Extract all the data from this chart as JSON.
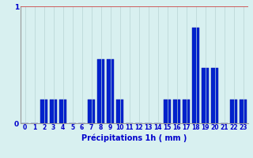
{
  "hours": [
    0,
    1,
    2,
    3,
    4,
    5,
    6,
    7,
    8,
    9,
    10,
    11,
    12,
    13,
    14,
    15,
    16,
    17,
    18,
    19,
    20,
    21,
    22,
    23
  ],
  "values": [
    0,
    0,
    0.2,
    0.2,
    0.2,
    0,
    0,
    0.2,
    0.55,
    0.55,
    0.2,
    0,
    0,
    0,
    0,
    0.2,
    0.2,
    0.2,
    0.82,
    0.47,
    0.47,
    0,
    0.2,
    0.2
  ],
  "bar_color": "#0022cc",
  "bar_edge_color": "#0011aa",
  "background_color": "#d8f0f0",
  "grid_color_x": "#b8d4d4",
  "grid_color_y": "#cc4444",
  "label_color": "#0000cc",
  "xlabel": "Précipitations 1h ( mm )",
  "ylim": [
    0,
    1.0
  ],
  "yticks": [
    0,
    1
  ],
  "xlabel_fontsize": 7,
  "tick_fontsize": 5.5
}
